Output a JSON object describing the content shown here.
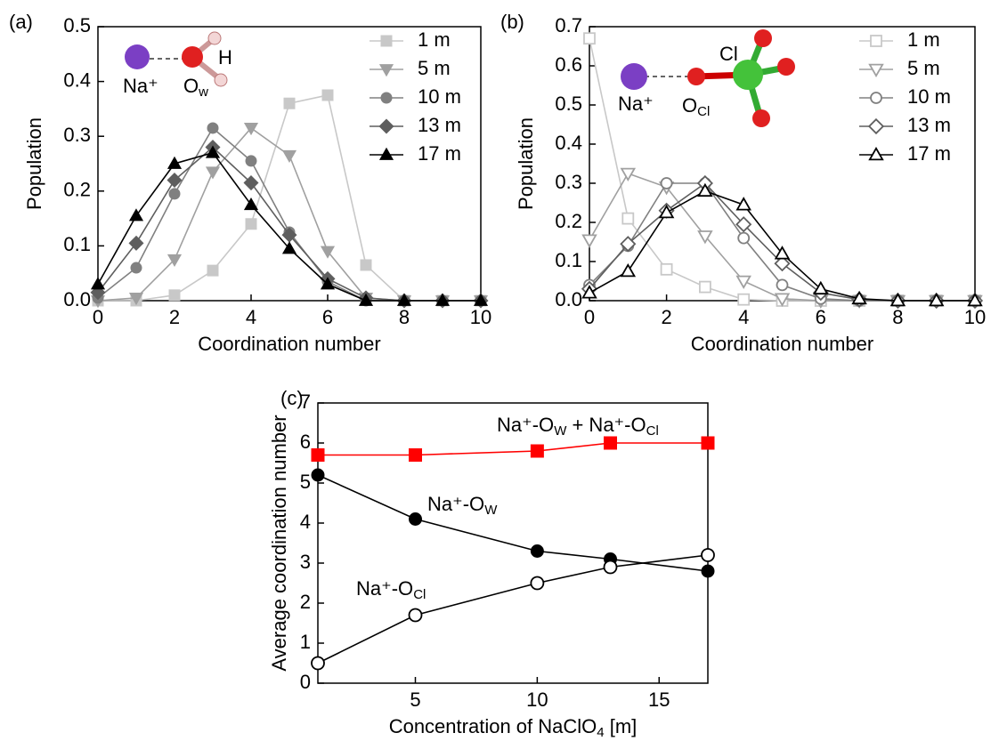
{
  "chart_data": [
    {
      "type": "line",
      "panel_label": "(a)",
      "x_label": [
        "Coordination number"
      ],
      "y_label": [
        "Population"
      ],
      "x": [
        0,
        1,
        2,
        3,
        4,
        5,
        6,
        7,
        8,
        9,
        10
      ],
      "xlim": [
        0,
        10
      ],
      "xticks": [
        0,
        2,
        4,
        6,
        8,
        10
      ],
      "ylim": [
        0,
        0.5
      ],
      "yticks": [
        {
          "value": 0,
          "label": "0.0"
        },
        0.1,
        0.2,
        0.3,
        0.4,
        0.5
      ],
      "legend": "upper right",
      "inset_labels": [
        [
          "Na⁺"
        ],
        [
          "O",
          "w"
        ],
        [
          "H"
        ]
      ],
      "series": [
        {
          "name": "1 m",
          "color": "#c8c8c8",
          "marker": "square",
          "filled": true,
          "values": [
            0,
            0,
            0.01,
            0.055,
            0.14,
            0.36,
            0.375,
            0.065,
            0,
            0,
            0
          ]
        },
        {
          "name": "5 m",
          "color": "#a0a0a0",
          "marker": "triangle-down",
          "filled": true,
          "values": [
            0,
            0.005,
            0.075,
            0.235,
            0.315,
            0.265,
            0.09,
            0.005,
            0,
            0,
            0
          ]
        },
        {
          "name": "10 m",
          "color": "#808080",
          "marker": "circle",
          "filled": true,
          "values": [
            0.005,
            0.06,
            0.195,
            0.315,
            0.255,
            0.125,
            0.035,
            0,
            0,
            0,
            0
          ]
        },
        {
          "name": "13 m",
          "color": "#5e5e5e",
          "marker": "diamond",
          "filled": true,
          "values": [
            0.015,
            0.105,
            0.22,
            0.28,
            0.215,
            0.12,
            0.04,
            0.005,
            0,
            0,
            0
          ]
        },
        {
          "name": "17 m",
          "color": "#000000",
          "marker": "triangle-up",
          "filled": true,
          "values": [
            0.03,
            0.155,
            0.25,
            0.27,
            0.175,
            0.095,
            0.03,
            0,
            0,
            0,
            0
          ]
        }
      ]
    },
    {
      "type": "line",
      "panel_label": "(b)",
      "x_label": [
        "Coordination number"
      ],
      "y_label": [
        "Population"
      ],
      "x": [
        0,
        1,
        2,
        3,
        4,
        5,
        6,
        7,
        8,
        9,
        10
      ],
      "xlim": [
        0,
        10
      ],
      "xticks": [
        0,
        2,
        4,
        6,
        8,
        10
      ],
      "ylim": [
        0,
        0.7
      ],
      "yticks": [
        {
          "value": 0,
          "label": "0.0"
        },
        0.1,
        0.2,
        0.3,
        0.4,
        0.5,
        0.6,
        0.7
      ],
      "legend": "upper right",
      "inset_labels": [
        [
          "Na⁺"
        ],
        [
          "O",
          "Cl"
        ],
        [
          "Cl"
        ]
      ],
      "series": [
        {
          "name": "1 m",
          "color": "#c8c8c8",
          "marker": "square",
          "filled": false,
          "values": [
            0.67,
            0.21,
            0.08,
            0.035,
            0.003,
            0,
            0,
            0,
            0,
            0,
            0
          ]
        },
        {
          "name": "5 m",
          "color": "#a0a0a0",
          "marker": "triangle-down",
          "filled": false,
          "values": [
            0.155,
            0.325,
            0.29,
            0.165,
            0.05,
            0.005,
            0,
            0,
            0,
            0,
            0
          ]
        },
        {
          "name": "10 m",
          "color": "#808080",
          "marker": "circle",
          "filled": false,
          "values": [
            0.04,
            0.14,
            0.3,
            0.3,
            0.16,
            0.04,
            0.005,
            0,
            0,
            0,
            0
          ]
        },
        {
          "name": "13 m",
          "color": "#5e5e5e",
          "marker": "diamond",
          "filled": false,
          "values": [
            0.03,
            0.145,
            0.23,
            0.3,
            0.195,
            0.095,
            0.02,
            0.003,
            0,
            0,
            0
          ]
        },
        {
          "name": "17 m",
          "color": "#000000",
          "marker": "triangle-up",
          "filled": false,
          "values": [
            0.02,
            0.075,
            0.225,
            0.28,
            0.245,
            0.12,
            0.03,
            0.005,
            0,
            0,
            0
          ]
        }
      ]
    },
    {
      "type": "line",
      "panel_label": "(c)",
      "x_label": [
        "Concentration of NaClO",
        "4",
        " [m]"
      ],
      "y_label": [
        "Average coordination number"
      ],
      "x": [
        1,
        5,
        10,
        13,
        17
      ],
      "xlim": [
        1,
        17
      ],
      "xticks": [
        5,
        10,
        15
      ],
      "ylim": [
        0,
        7
      ],
      "yticks": [
        0,
        1,
        2,
        3,
        4,
        5,
        6,
        7
      ],
      "annotations": [
        [
          "Na⁺-O",
          "W",
          " + Na⁺-O",
          "Cl"
        ],
        [
          "Na⁺-O",
          "W"
        ],
        [
          "Na⁺-O",
          "Cl"
        ]
      ],
      "series": [
        {
          "color": "#ff0000",
          "marker": "square",
          "filled": true,
          "values": [
            5.7,
            5.7,
            5.8,
            6.0,
            6.0
          ]
        },
        {
          "color": "#000000",
          "marker": "circle",
          "filled": true,
          "values": [
            5.2,
            4.1,
            3.3,
            3.1,
            2.8
          ]
        },
        {
          "color": "#000000",
          "marker": "circle",
          "filled": false,
          "values": [
            0.5,
            1.7,
            2.5,
            2.9,
            3.2
          ]
        }
      ]
    }
  ]
}
